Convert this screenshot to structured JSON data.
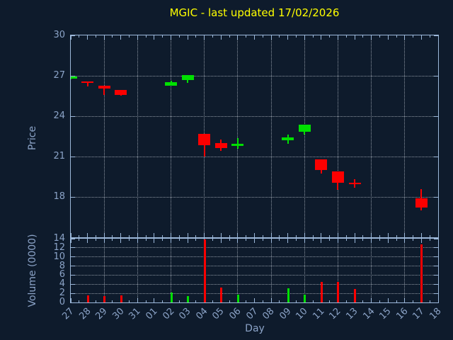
{
  "title": {
    "text": "MGIC - last updated 17/02/2026"
  },
  "colors": {
    "background": "#0e1b2c",
    "frame": "#9cb8da",
    "grid": "#8d96a2",
    "text": "#8ba3c7",
    "title": "#ffff00",
    "up": "#00e000",
    "down": "#fc0000"
  },
  "chart_data": [
    {
      "type": "candlestick",
      "panel": "price",
      "ylabel": "Price",
      "ylim": [
        15,
        30
      ],
      "yticks": [
        30,
        27,
        24,
        21,
        18
      ],
      "grid": "dotted, vertical every 2 days, horizontal at yticks",
      "x_categories": [
        "27",
        "28",
        "29",
        "30",
        "31",
        "01",
        "02",
        "03",
        "04",
        "05",
        "06",
        "07",
        "08",
        "09",
        "10",
        "11",
        "12",
        "13",
        "14",
        "15",
        "16",
        "17",
        "18"
      ],
      "series": [
        {
          "day": "27",
          "open": 26.8,
          "high": 26.95,
          "low": 26.75,
          "close": 26.95,
          "direction": "up"
        },
        {
          "day": "28",
          "open": 26.6,
          "high": 26.6,
          "low": 26.2,
          "close": 26.45,
          "direction": "down"
        },
        {
          "day": "29",
          "open": 26.25,
          "high": 26.25,
          "low": 25.6,
          "close": 26.05,
          "direction": "down"
        },
        {
          "day": "30",
          "open": 25.95,
          "high": 25.95,
          "low": 25.5,
          "close": 25.6,
          "direction": "down"
        },
        {
          "day": "02",
          "open": 26.25,
          "high": 26.65,
          "low": 26.25,
          "close": 26.55,
          "direction": "up"
        },
        {
          "day": "03",
          "open": 26.7,
          "high": 27.05,
          "low": 26.45,
          "close": 27.05,
          "direction": "up"
        },
        {
          "day": "04",
          "open": 22.7,
          "high": 22.7,
          "low": 21.0,
          "close": 21.85,
          "direction": "down"
        },
        {
          "day": "05",
          "open": 22.0,
          "high": 22.25,
          "low": 21.4,
          "close": 21.65,
          "direction": "down"
        },
        {
          "day": "06",
          "open": 21.8,
          "high": 22.35,
          "low": 21.6,
          "close": 21.95,
          "direction": "up"
        },
        {
          "day": "09",
          "open": 22.2,
          "high": 22.65,
          "low": 21.95,
          "close": 22.4,
          "direction": "up"
        },
        {
          "day": "10",
          "open": 22.85,
          "high": 23.35,
          "low": 22.65,
          "close": 23.35,
          "direction": "up"
        },
        {
          "day": "11",
          "open": 20.8,
          "high": 20.8,
          "low": 19.75,
          "close": 20.0,
          "direction": "down"
        },
        {
          "day": "12",
          "open": 19.9,
          "high": 19.9,
          "low": 18.5,
          "close": 19.05,
          "direction": "down"
        },
        {
          "day": "13",
          "open": 19.05,
          "high": 19.3,
          "low": 18.7,
          "close": 18.95,
          "direction": "down"
        },
        {
          "day": "17",
          "open": 17.9,
          "high": 18.6,
          "low": 17.0,
          "close": 17.2,
          "direction": "down"
        }
      ]
    },
    {
      "type": "bar",
      "panel": "volume",
      "ylabel": "Volume (0000)",
      "xlabel": "Day",
      "ylim": [
        0,
        14
      ],
      "yticks": [
        14,
        12,
        10,
        8,
        6,
        4,
        2,
        0
      ],
      "x_categories": [
        "27",
        "28",
        "29",
        "30",
        "31",
        "01",
        "02",
        "03",
        "04",
        "05",
        "06",
        "07",
        "08",
        "09",
        "10",
        "11",
        "12",
        "13",
        "14",
        "15",
        "16",
        "17",
        "18"
      ],
      "bars": [
        {
          "day": "28",
          "value": 1.6,
          "direction": "down"
        },
        {
          "day": "29",
          "value": 1.4,
          "direction": "down"
        },
        {
          "day": "30",
          "value": 1.6,
          "direction": "down"
        },
        {
          "day": "02",
          "value": 2.2,
          "direction": "up"
        },
        {
          "day": "03",
          "value": 1.4,
          "direction": "up"
        },
        {
          "day": "04",
          "value": 13.8,
          "direction": "down"
        },
        {
          "day": "05",
          "value": 3.3,
          "direction": "down"
        },
        {
          "day": "06",
          "value": 1.7,
          "direction": "up"
        },
        {
          "day": "09",
          "value": 3.1,
          "direction": "up"
        },
        {
          "day": "10",
          "value": 1.7,
          "direction": "up"
        },
        {
          "day": "11",
          "value": 4.5,
          "direction": "down"
        },
        {
          "day": "12",
          "value": 4.5,
          "direction": "down"
        },
        {
          "day": "13",
          "value": 3.0,
          "direction": "down"
        },
        {
          "day": "17",
          "value": 12.8,
          "direction": "down"
        }
      ]
    }
  ]
}
